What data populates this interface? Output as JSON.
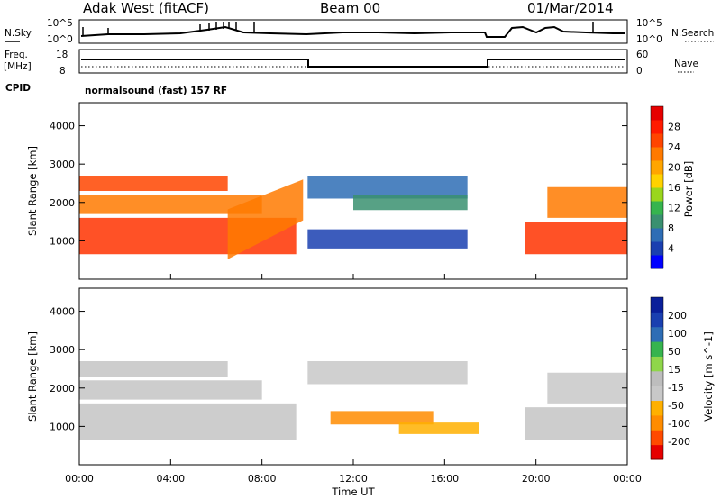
{
  "header": {
    "title": "Adak West (fitACF)",
    "beam": "Beam 00",
    "date": "01/Mar/2014"
  },
  "panels": {
    "nsky_label": "N.Sky",
    "nsearch_label": "N.Search",
    "nsky_ticks": [
      "10^5",
      "10^0"
    ],
    "nsearch_ticks": [
      "10^5",
      "10^0"
    ],
    "freq_label_1": "Freq.",
    "freq_label_2": "[MHz]",
    "freq_ticks": [
      "18",
      "8"
    ],
    "nave_label": "Nave",
    "nave_ticks": [
      "60",
      "0"
    ],
    "cpid_label": "CPID",
    "cpid_text": "normalsound (fast) 157 RF"
  },
  "colors": {
    "power": [
      "#0000ff",
      "#1a3fb0",
      "#2e6db5",
      "#3a9070",
      "#36b44e",
      "#9ad61c",
      "#ffd200",
      "#ffa500",
      "#ff7a00",
      "#ff4500",
      "#ff1a00",
      "#e60000"
    ],
    "velocity": [
      "#e60000",
      "#ff4a00",
      "#ff8c00",
      "#ffb000",
      "#c8c8c8",
      "#bdbdbd",
      "#8fd64a",
      "#36b44e",
      "#2e6db5",
      "#1a3fb0",
      "#0a1f9a"
    ]
  },
  "chart_data": [
    {
      "type": "heatmap",
      "name": "power",
      "ylabel": "Slant Range [km]",
      "yticks": [
        "1000",
        "2000",
        "3000",
        "4000"
      ],
      "ylim": [
        0,
        4600
      ],
      "colorbar_label": "Power [dB]",
      "colorbar_ticks": [
        "4",
        "8",
        "12",
        "16",
        "20",
        "24",
        "28"
      ],
      "bands": [
        {
          "t0": 0.0,
          "t1": 9.5,
          "r0": 650,
          "r1": 1600,
          "color": "#ff3300",
          "slope": 0.0
        },
        {
          "t0": 0.0,
          "t1": 8.0,
          "r0": 1700,
          "r1": 2200,
          "color": "#ff7a00",
          "slope": 0.0
        },
        {
          "t0": 0.0,
          "t1": 6.5,
          "r0": 2300,
          "r1": 2700,
          "color": "#ff4500",
          "slope": 0.0
        },
        {
          "t0": 6.5,
          "t1": 9.8,
          "r0": 1300,
          "r1": 2600,
          "color": "#ff7a00",
          "slope": 1.0
        },
        {
          "t0": 10.0,
          "t1": 17.0,
          "r0": 2100,
          "r1": 2700,
          "color": "#2e6db5",
          "slope": 0.0
        },
        {
          "t0": 12.0,
          "t1": 17.0,
          "r0": 1800,
          "r1": 2200,
          "color": "#3a9070",
          "slope": 0.0
        },
        {
          "t0": 10.0,
          "t1": 17.0,
          "r0": 800,
          "r1": 1300,
          "color": "#1a3fb0",
          "slope": 0.0
        },
        {
          "t0": 19.5,
          "t1": 24.0,
          "r0": 650,
          "r1": 1500,
          "color": "#ff3300",
          "slope": 0.0
        },
        {
          "t0": 20.5,
          "t1": 24.0,
          "r0": 1600,
          "r1": 2400,
          "color": "#ff7a00",
          "slope": 0.0
        }
      ]
    },
    {
      "type": "heatmap",
      "name": "velocity",
      "ylabel": "Slant Range [km]",
      "yticks": [
        "1000",
        "2000",
        "3000",
        "4000"
      ],
      "ylim": [
        0,
        4600
      ],
      "colorbar_label": "Velocity [m s^-1]",
      "colorbar_ticks": [
        "200",
        "100",
        "50",
        "15",
        "-15",
        "-50",
        "-100",
        "-200"
      ],
      "bands": [
        {
          "t0": 0.0,
          "t1": 9.5,
          "r0": 650,
          "r1": 1600,
          "color": "#c4c4c4",
          "slope": 0.0
        },
        {
          "t0": 0.0,
          "t1": 8.0,
          "r0": 1700,
          "r1": 2200,
          "color": "#c4c4c4",
          "slope": 0.0
        },
        {
          "t0": 0.0,
          "t1": 6.5,
          "r0": 2300,
          "r1": 2700,
          "color": "#c4c4c4",
          "slope": 0.0
        },
        {
          "t0": 10.0,
          "t1": 17.0,
          "r0": 2100,
          "r1": 2700,
          "color": "#c8c8c8",
          "slope": 0.0
        },
        {
          "t0": 11.0,
          "t1": 15.5,
          "r0": 1050,
          "r1": 1400,
          "color": "#ff8c00",
          "slope": 0.0
        },
        {
          "t0": 14.0,
          "t1": 17.5,
          "r0": 800,
          "r1": 1100,
          "color": "#ffb000",
          "slope": 0.0
        },
        {
          "t0": 19.5,
          "t1": 24.0,
          "r0": 650,
          "r1": 1500,
          "color": "#c4c4c4",
          "slope": 0.0
        },
        {
          "t0": 20.5,
          "t1": 24.0,
          "r0": 1600,
          "r1": 2400,
          "color": "#c8c8c8",
          "slope": 0.0
        }
      ]
    }
  ],
  "xaxis": {
    "label": "Time UT",
    "ticks": [
      "00:00",
      "04:00",
      "08:00",
      "12:00",
      "16:00",
      "20:00",
      "00:00"
    ]
  }
}
